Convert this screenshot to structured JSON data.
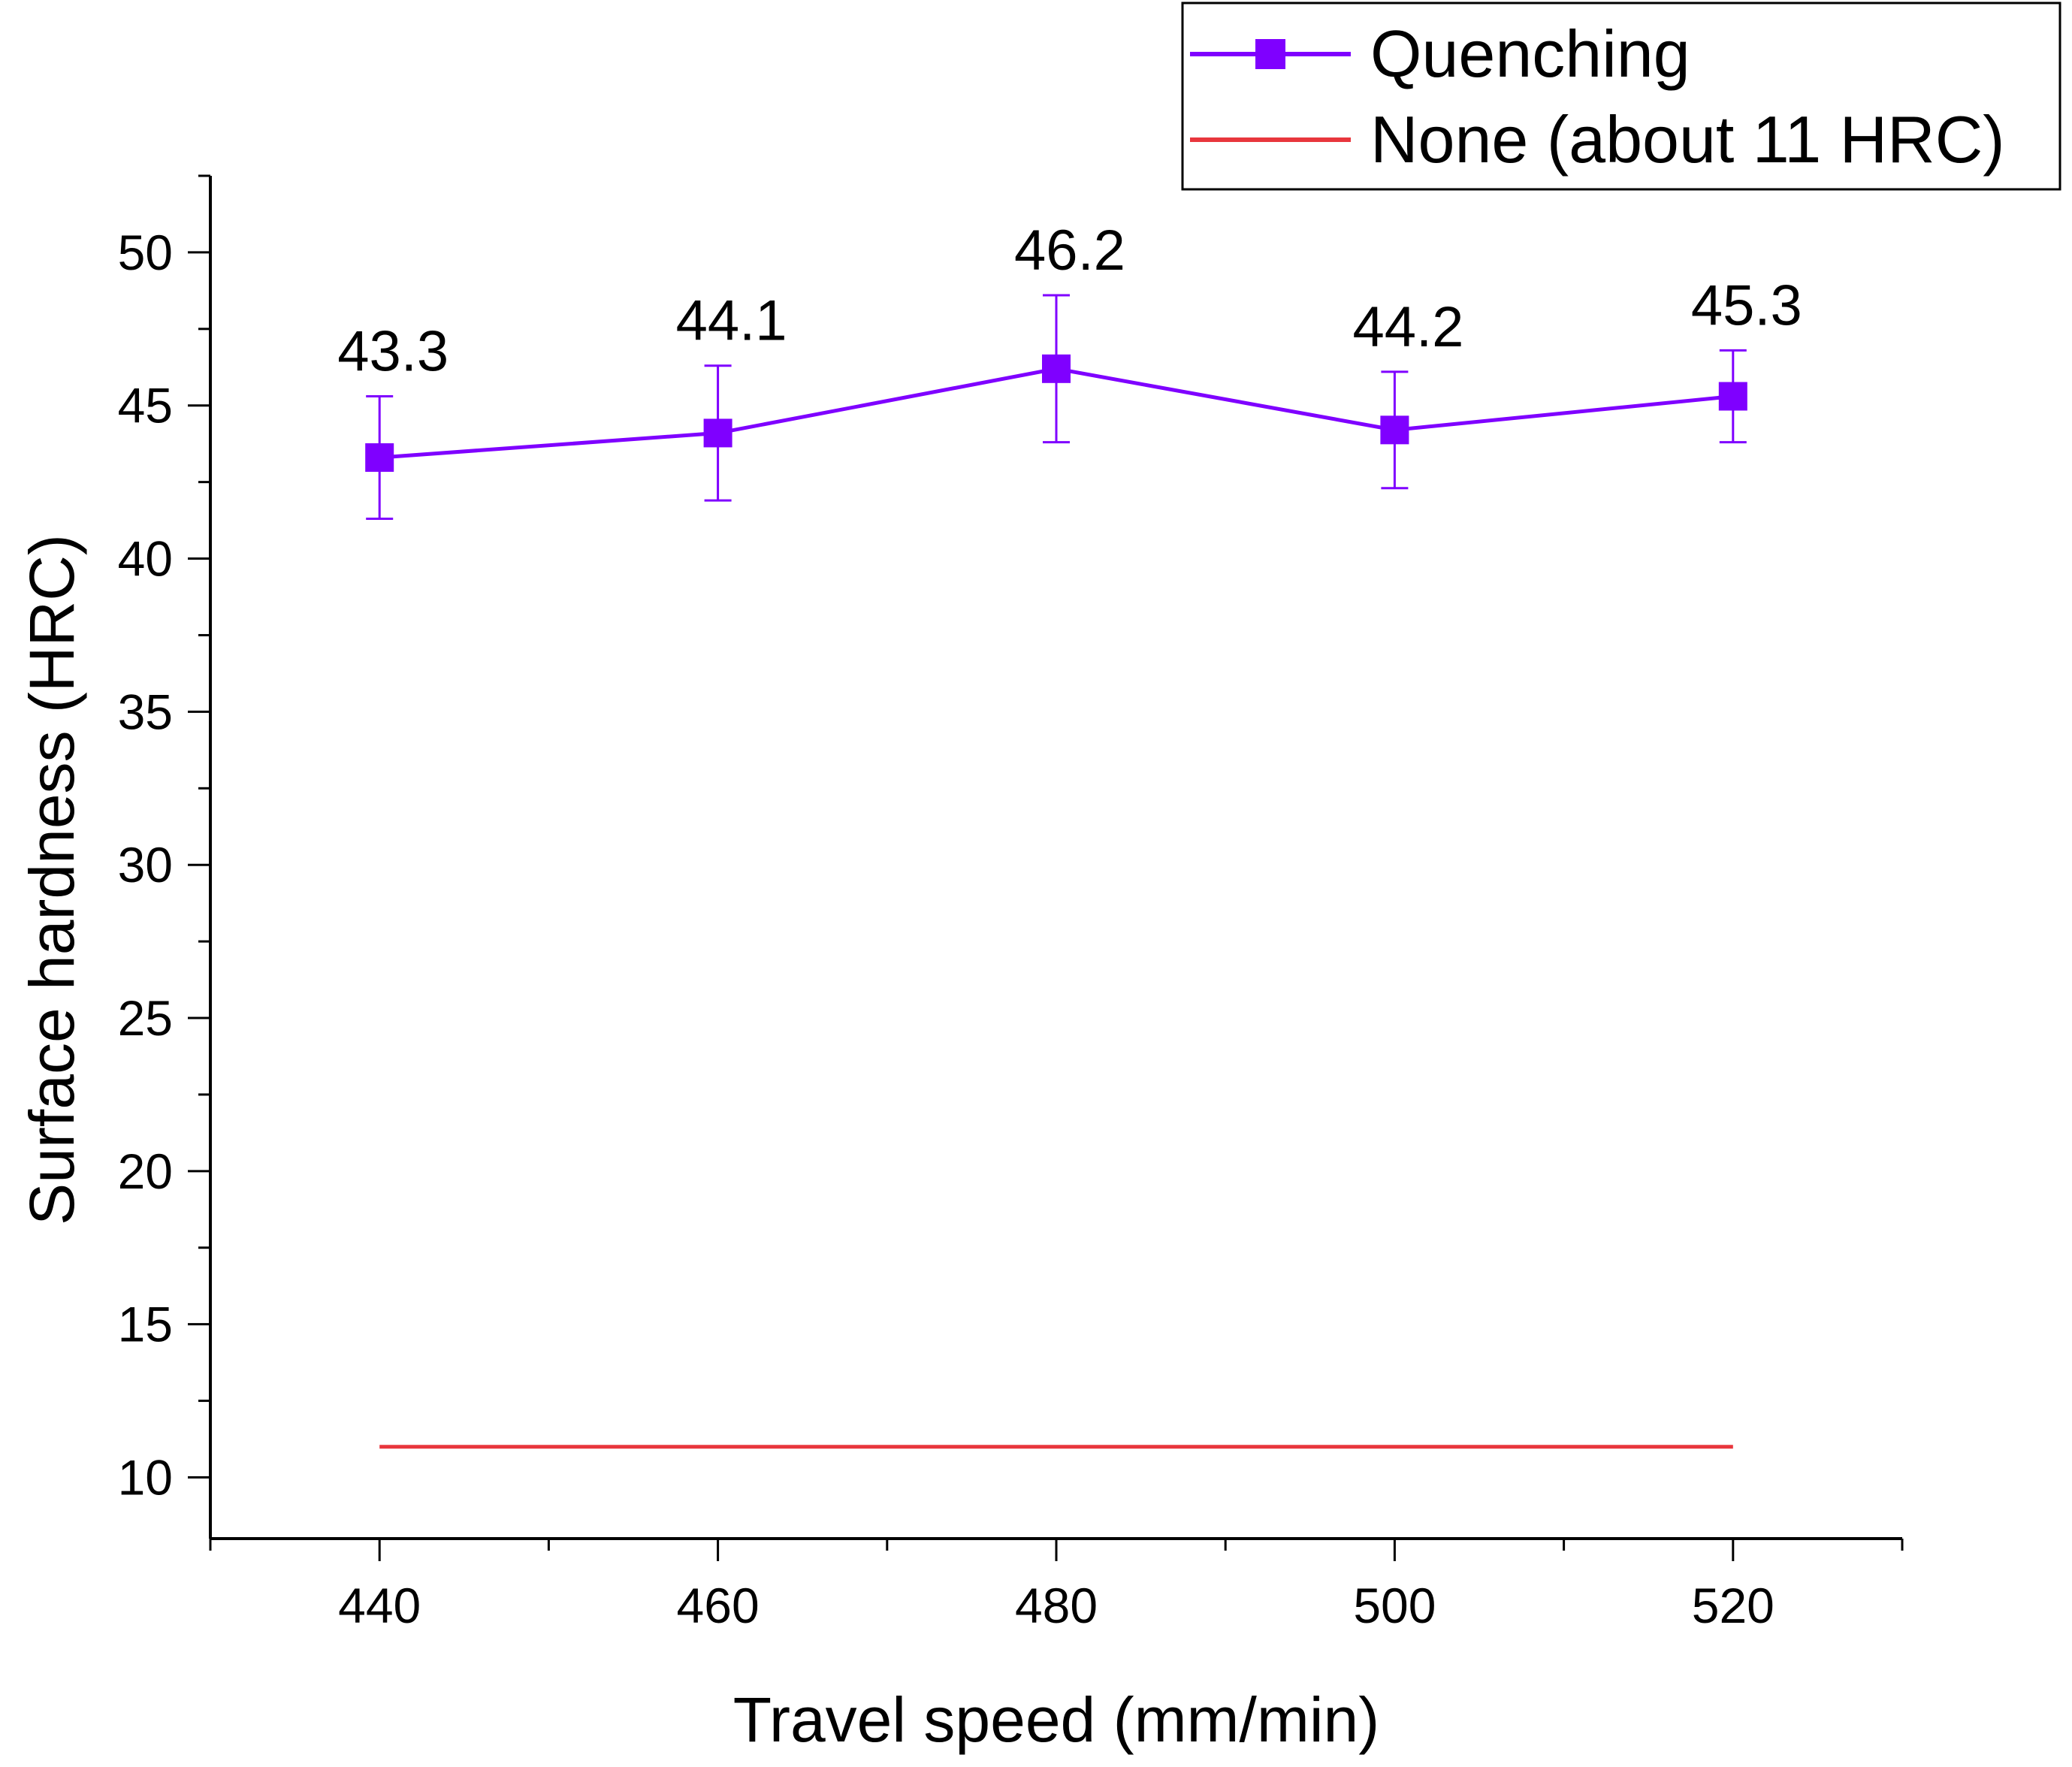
{
  "chart_data": {
    "type": "line",
    "title": "",
    "xlabel": "Travel speed (mm/min)",
    "ylabel": "Surface hardness (HRC)",
    "xlim": [
      430,
      530
    ],
    "ylim": [
      8,
      52.5
    ],
    "x_ticks": [
      440,
      460,
      480,
      500,
      520
    ],
    "x_tick_labels": [
      "440",
      "460",
      "480",
      "500",
      "520"
    ],
    "y_ticks": [
      10,
      15,
      20,
      25,
      30,
      35,
      40,
      45,
      50
    ],
    "y_tick_labels": [
      "10",
      "15",
      "20",
      "25",
      "30",
      "35",
      "40",
      "45",
      "50"
    ],
    "x_minor_step": 10,
    "y_minor_step": 2.5,
    "grid": false,
    "legend_position": "top-right",
    "series": [
      {
        "name": "Quenching",
        "style": "line-square-markers-with-error-bars",
        "color": "#7f00ff",
        "x": [
          440,
          460,
          480,
          500,
          520
        ],
        "y": [
          43.3,
          44.1,
          46.2,
          44.2,
          45.3
        ],
        "error": [
          2.0,
          2.2,
          2.4,
          1.9,
          1.5
        ],
        "labels": [
          "43.3",
          "44.1",
          "46.2",
          "44.2",
          "45.3"
        ]
      },
      {
        "name": "None (about 11 HRC)",
        "style": "line",
        "color": "#e8363d",
        "x": [
          440,
          520
        ],
        "y": [
          11,
          11
        ]
      }
    ]
  }
}
